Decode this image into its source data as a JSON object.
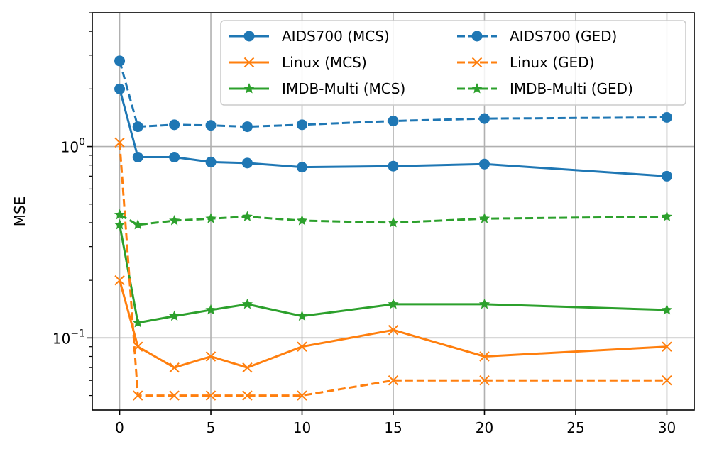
{
  "chart_data": {
    "type": "line",
    "title": "",
    "xlabel": "",
    "ylabel": "MSE",
    "yscale": "log",
    "xlim": [
      -1.5,
      31.5
    ],
    "ylim": [
      0.042,
      5.0
    ],
    "grid": true,
    "legend_position": "top-right",
    "legend_columns": 2,
    "x_ticks": [
      0,
      5,
      10,
      15,
      20,
      25,
      30
    ],
    "x_tick_labels": [
      "0",
      "5",
      "10",
      "15",
      "20",
      "25",
      "30"
    ],
    "y_ticks": [
      0.1,
      1.0
    ],
    "y_tick_labels": [
      {
        "base": "10",
        "exp": "−1"
      },
      {
        "base": "10",
        "exp": "0"
      }
    ],
    "x": [
      0,
      1,
      3,
      5,
      7,
      10,
      15,
      20,
      30
    ],
    "series": [
      {
        "name": "AIDS700 (MCS)",
        "color": "#1f77b4",
        "linestyle": "solid",
        "marker": "circle",
        "values": [
          2.0,
          0.88,
          0.88,
          0.83,
          0.82,
          0.78,
          0.79,
          0.81,
          0.7
        ]
      },
      {
        "name": "Linux (MCS)",
        "color": "#ff7f0e",
        "linestyle": "solid",
        "marker": "x",
        "values": [
          0.2,
          0.09,
          0.07,
          0.08,
          0.07,
          0.09,
          0.11,
          0.08,
          0.09
        ]
      },
      {
        "name": "IMDB-Multi (MCS)",
        "color": "#2ca02c",
        "linestyle": "solid",
        "marker": "star",
        "values": [
          0.39,
          0.12,
          0.13,
          0.14,
          0.15,
          0.13,
          0.15,
          0.15,
          0.14
        ]
      },
      {
        "name": "AIDS700 (GED)",
        "color": "#1f77b4",
        "linestyle": "dashed",
        "marker": "circle",
        "values": [
          2.8,
          1.27,
          1.3,
          1.29,
          1.27,
          1.3,
          1.36,
          1.4,
          1.42
        ]
      },
      {
        "name": "Linux (GED)",
        "color": "#ff7f0e",
        "linestyle": "dashed",
        "marker": "x",
        "values": [
          1.05,
          0.05,
          0.05,
          0.05,
          0.05,
          0.05,
          0.06,
          0.06,
          0.06
        ]
      },
      {
        "name": "IMDB-Multi (GED)",
        "color": "#2ca02c",
        "linestyle": "dashed",
        "marker": "star",
        "values": [
          0.44,
          0.39,
          0.41,
          0.42,
          0.43,
          0.41,
          0.4,
          0.42,
          0.43
        ]
      }
    ]
  }
}
